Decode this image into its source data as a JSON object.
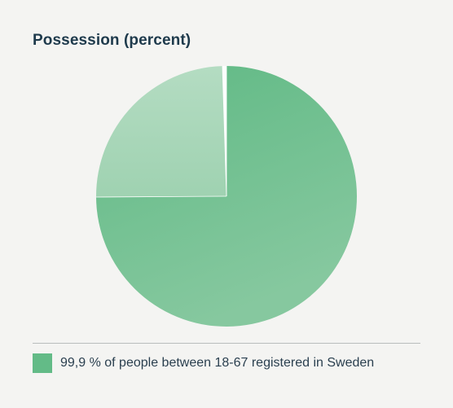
{
  "title": "Possession (percent)",
  "colors": {
    "primary": "#63bb87",
    "secondary": "#a9d6b9",
    "background": "#f4f4f2",
    "title": "#1e3a4c"
  },
  "chart_data": {
    "type": "pie",
    "title": "Possession (percent)",
    "slices": [
      {
        "label": "99,9 % of people between 18-67 registered in Sweden",
        "value": 74.9,
        "color": "#63bb87"
      },
      {
        "label": "",
        "value": 24.6,
        "color": "#a9d6b9"
      },
      {
        "label": "",
        "value": 0.5,
        "color": "#ffffff"
      }
    ],
    "legend": {
      "placement": "bottom",
      "entries": [
        "99,9 % of people between 18-67 registered in Sweden"
      ]
    }
  }
}
